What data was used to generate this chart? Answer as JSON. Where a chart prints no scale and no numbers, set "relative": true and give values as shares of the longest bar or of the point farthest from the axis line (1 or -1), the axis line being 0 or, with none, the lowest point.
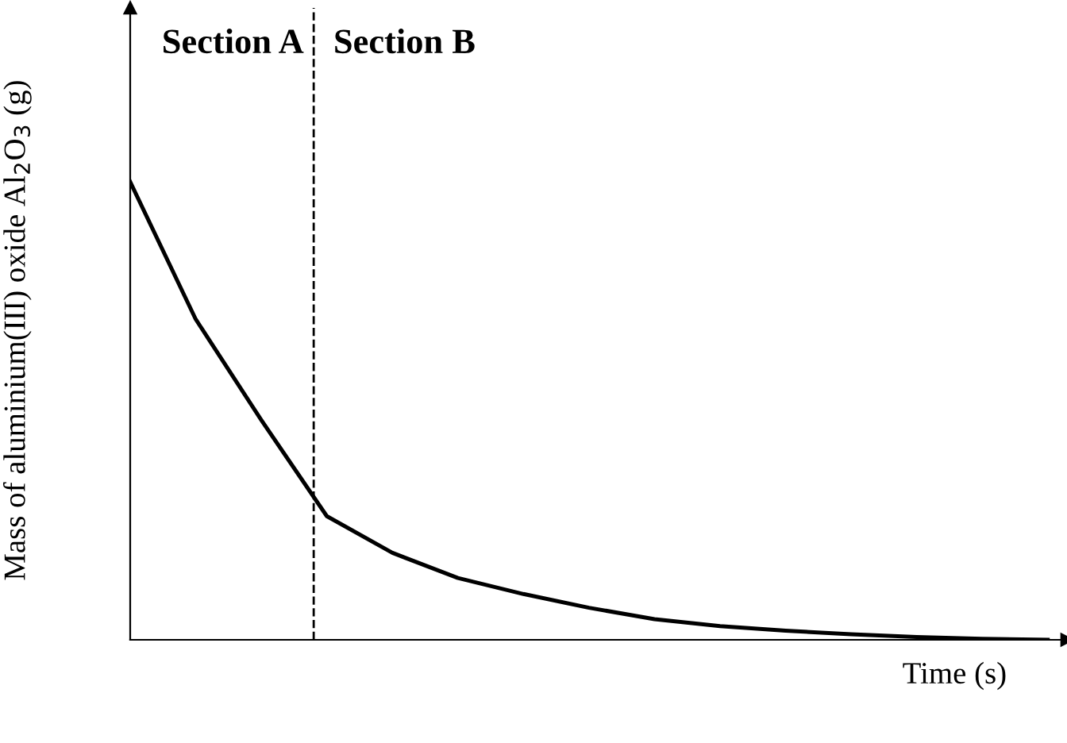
{
  "chart_data": {
    "type": "line",
    "relative": true,
    "tick_labels": false,
    "xlabel": "Time (s)",
    "ylabel": "Mass of aluminium(III) oxide Al$_{2}$O$_{3}$ (g)",
    "categories": [
      null,
      null,
      null,
      null,
      null,
      null,
      null,
      null,
      null,
      null,
      null,
      null,
      null,
      null,
      null
    ],
    "series": [
      {
        "color": "#000000",
        "values": [
          1,
          0.7,
          0.48,
          0.27,
          0.19,
          0.135,
          0.1,
          0.07,
          0.045,
          0.03,
          0.02,
          0.012,
          0.006,
          0.002,
          0
        ]
      }
    ],
    "annotations": [
      "Section A",
      "Section B"
    ],
    "marker": "none",
    "line_style": "solid"
  }
}
